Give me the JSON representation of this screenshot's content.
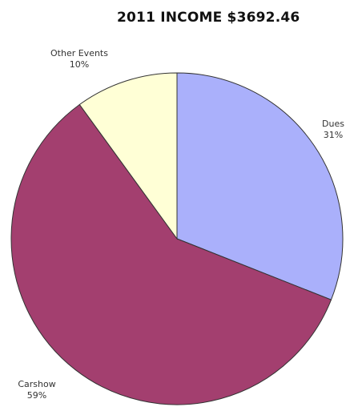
{
  "chart_data": {
    "type": "pie",
    "title": "2011 INCOME $3692.46",
    "slices": [
      {
        "label": "Dues",
        "percent_label": "31%",
        "value": 31,
        "color": "#aab0fb"
      },
      {
        "label": "Carshow",
        "percent_label": "59%",
        "value": 59,
        "color": "#a33f6f"
      },
      {
        "label": "Other Events",
        "percent_label": "10%",
        "value": 10,
        "color": "#ffffd6"
      }
    ],
    "start_angle_deg": 0,
    "direction": "clockwise",
    "legend": "none"
  }
}
